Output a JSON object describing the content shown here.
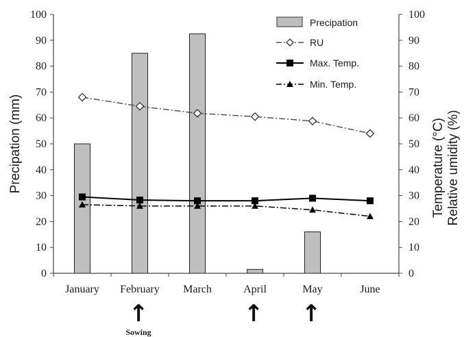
{
  "chart_data": {
    "type": "bar",
    "categories": [
      "January",
      "February",
      "March",
      "April",
      "May",
      "June"
    ],
    "ylabel": "Precipation (mm)",
    "y2label_line1": "Temperature (°C)",
    "y2label_line2": "Relative umidity (%)",
    "ylim": [
      0,
      100
    ],
    "y2lim": [
      0,
      100
    ],
    "yticks": [
      "0",
      "10",
      "20",
      "30",
      "40",
      "50",
      "60",
      "70",
      "80",
      "90",
      "100"
    ],
    "y2ticks": [
      "0",
      "10",
      "20",
      "30",
      "40",
      "50",
      "60",
      "70",
      "80",
      "90",
      "100"
    ],
    "legend_position": "top-right",
    "grid": false,
    "series": [
      {
        "name": "Precipation",
        "kind": "bar",
        "axis": "left",
        "values": [
          50,
          85,
          92.5,
          1.5,
          16,
          0
        ],
        "color": "#bfbfbf"
      },
      {
        "name": "RU",
        "kind": "line",
        "axis": "right",
        "marker": "diamond-open",
        "dash": "dashdot",
        "values": [
          68,
          64.5,
          61.8,
          60.5,
          58.8,
          54
        ],
        "color": "#555555"
      },
      {
        "name": "Max. Temp.",
        "kind": "line",
        "axis": "right",
        "marker": "square",
        "dash": "solid",
        "values": [
          29.5,
          28.3,
          28,
          28,
          29,
          28
        ],
        "color": "#000000"
      },
      {
        "name": "Min. Temp.",
        "kind": "line",
        "axis": "right",
        "marker": "triangle",
        "dash": "dashdot",
        "values": [
          26.5,
          26,
          26,
          26,
          24.5,
          22
        ],
        "color": "#000000"
      }
    ],
    "annotations": [
      {
        "category": "February",
        "symbol": "↑",
        "label": "Sowing"
      },
      {
        "category": "April",
        "symbol": "↑",
        "label": ""
      },
      {
        "category": "May",
        "symbol": "↑",
        "label": ""
      }
    ]
  }
}
